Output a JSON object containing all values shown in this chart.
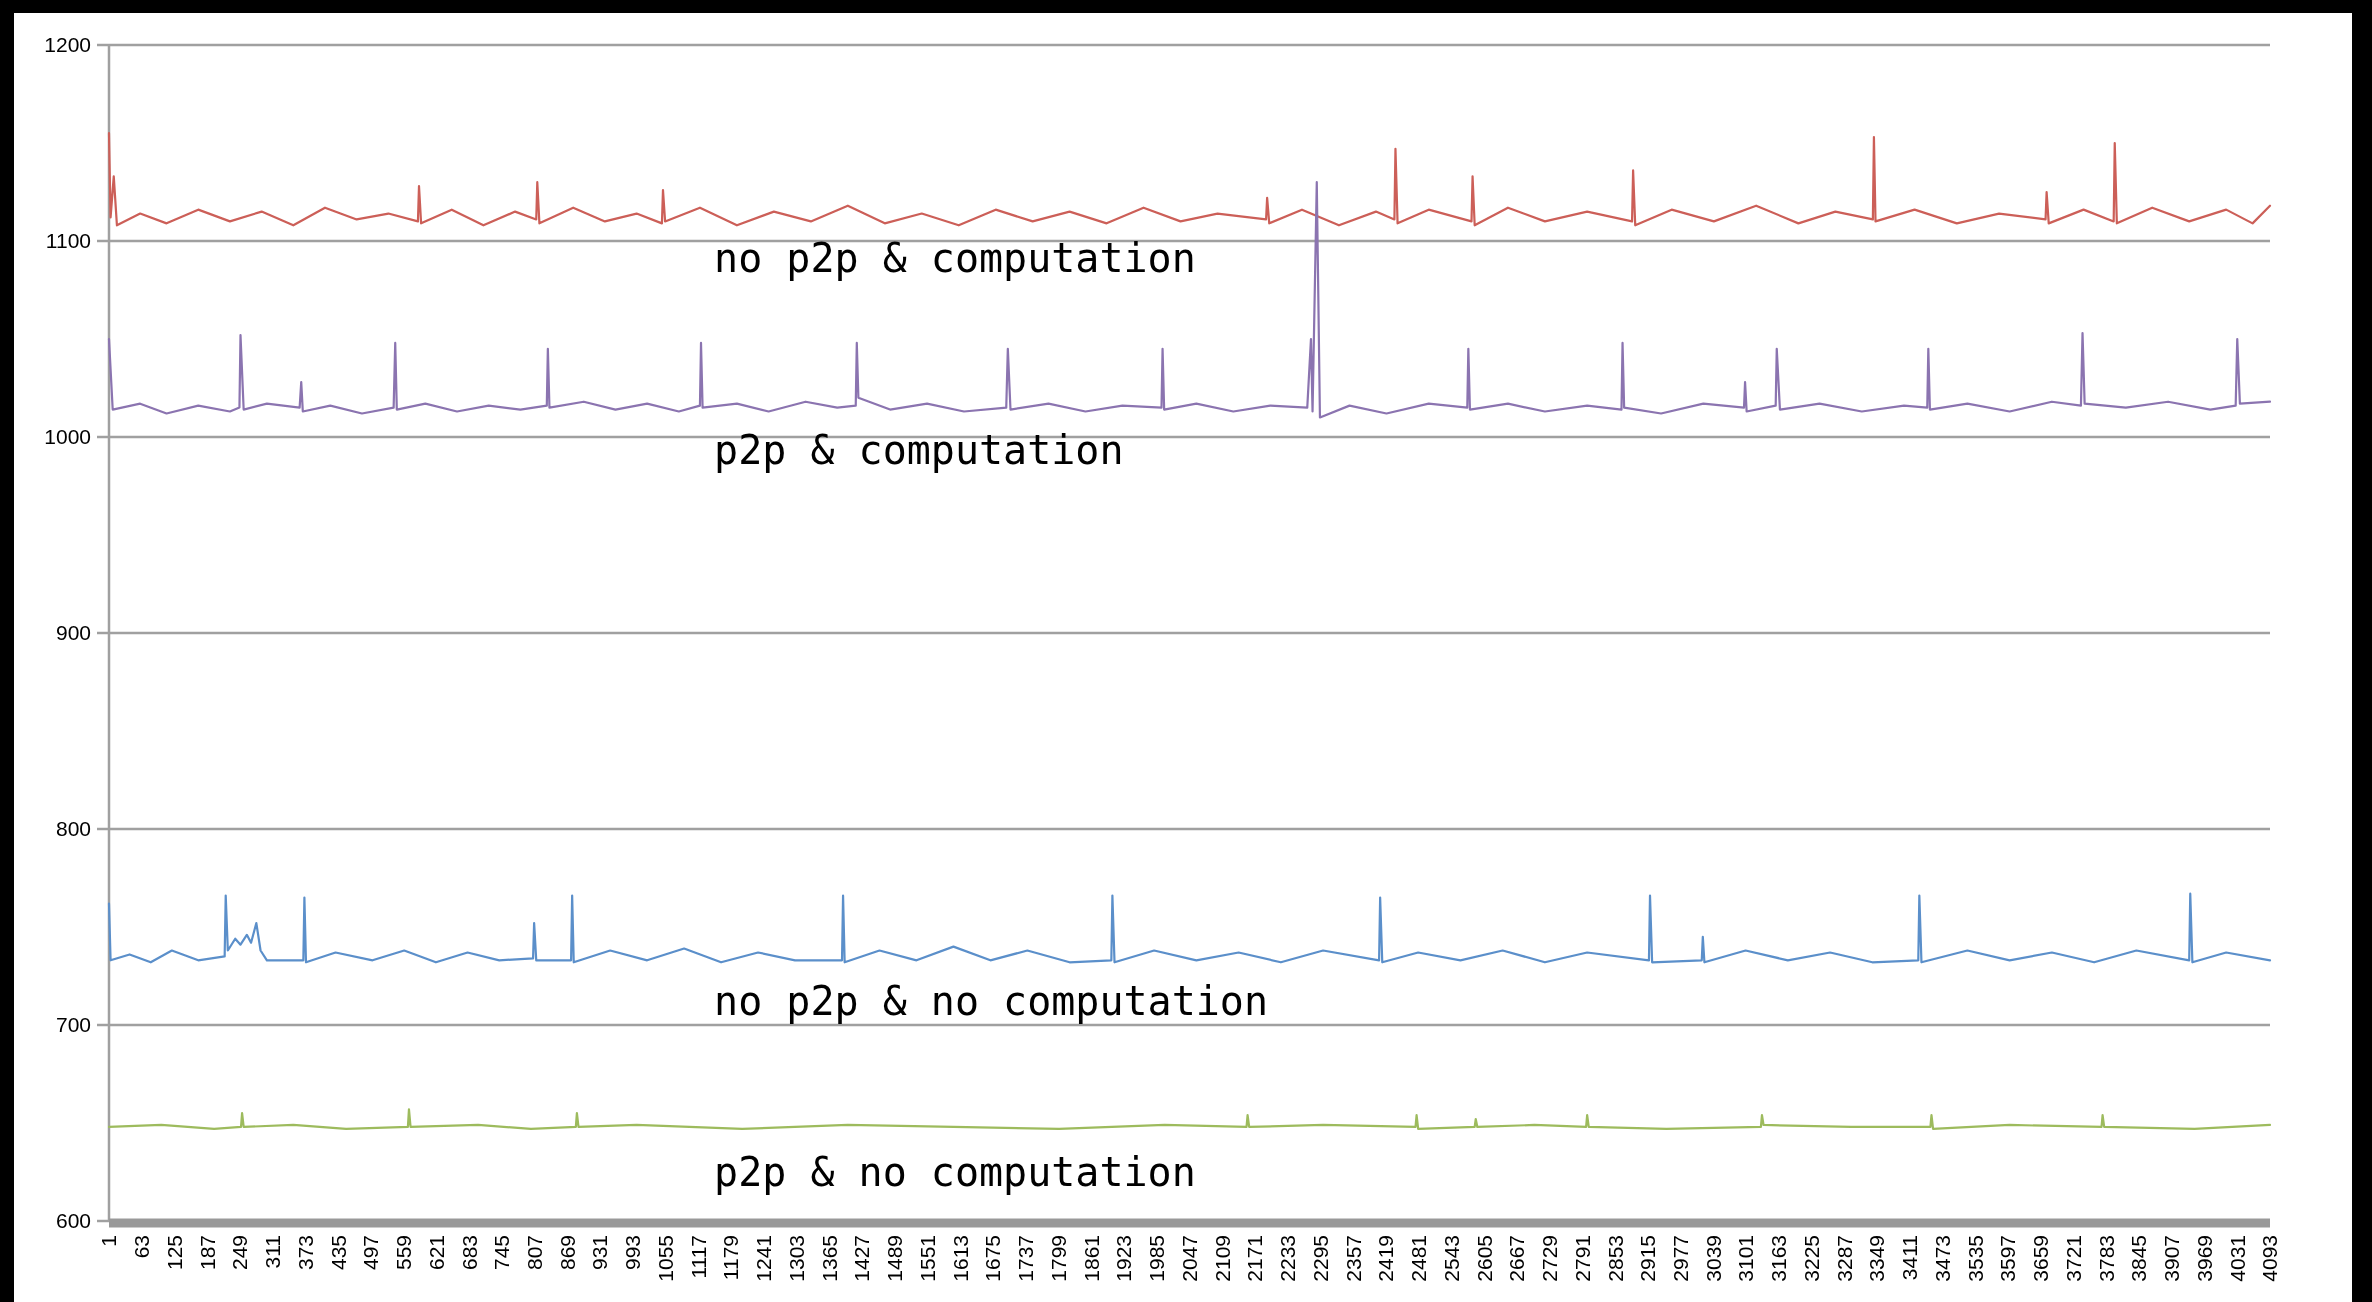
{
  "chart_data": {
    "type": "line",
    "grid": "y",
    "xlim": [
      1,
      4093
    ],
    "xticks": [
      1,
      63,
      125,
      187,
      249,
      311,
      373,
      435,
      497,
      559,
      621,
      683,
      745,
      807,
      869,
      931,
      993,
      1055,
      1117,
      1179,
      1241,
      1303,
      1365,
      1427,
      1489,
      1551,
      1613,
      1675,
      1737,
      1799,
      1861,
      1923,
      1985,
      2047,
      2109,
      2171,
      2233,
      2295,
      2357,
      2419,
      2481,
      2543,
      2605,
      2667,
      2729,
      2791,
      2853,
      2915,
      2977,
      3039,
      3101,
      3163,
      3225,
      3287,
      3349,
      3411,
      3473,
      3535,
      3597,
      3659,
      3721,
      3783,
      3845,
      3907,
      3969,
      4031,
      4093
    ],
    "ylim": [
      600,
      1200
    ],
    "yticks": [
      600,
      700,
      800,
      900,
      1000,
      1100,
      1200
    ],
    "series": [
      {
        "name": "no p2p & computation",
        "color": "#cc5f58",
        "x": [
          1,
          4,
          10,
          16,
          60,
          110,
          170,
          230,
          290,
          350,
          410,
          470,
          530,
          586,
          588,
          592,
          650,
          710,
          770,
          810,
          812,
          816,
          880,
          940,
          1000,
          1048,
          1050,
          1054,
          1120,
          1190,
          1260,
          1330,
          1400,
          1470,
          1540,
          1610,
          1680,
          1750,
          1820,
          1890,
          1960,
          2030,
          2100,
          2192,
          2194,
          2198,
          2260,
          2330,
          2400,
          2435,
          2437,
          2441,
          2500,
          2581,
          2583,
          2587,
          2650,
          2720,
          2800,
          2885,
          2887,
          2891,
          2960,
          3040,
          3120,
          3200,
          3270,
          3341,
          3343,
          3346,
          3420,
          3500,
          3580,
          3668,
          3670,
          3674,
          3740,
          3797,
          3799,
          3803,
          3870,
          3940,
          4010,
          4060,
          4093
        ],
        "values": [
          1155,
          1112,
          1133,
          1108,
          1114,
          1109,
          1116,
          1110,
          1115,
          1108,
          1117,
          1111,
          1114,
          1110,
          1128,
          1109,
          1116,
          1108,
          1115,
          1111,
          1130,
          1109,
          1117,
          1110,
          1114,
          1109,
          1126,
          1110,
          1117,
          1108,
          1115,
          1110,
          1118,
          1109,
          1114,
          1108,
          1116,
          1110,
          1115,
          1109,
          1117,
          1110,
          1114,
          1111,
          1122,
          1109,
          1116,
          1108,
          1115,
          1111,
          1147,
          1109,
          1116,
          1110,
          1133,
          1108,
          1117,
          1110,
          1115,
          1110,
          1136,
          1108,
          1116,
          1110,
          1118,
          1109,
          1115,
          1111,
          1153,
          1110,
          1116,
          1109,
          1114,
          1111,
          1125,
          1109,
          1116,
          1110,
          1150,
          1109,
          1117,
          1110,
          1116,
          1109,
          1118
        ]
      },
      {
        "name": "p2p & computation",
        "color": "#8b74b0",
        "x": [
          1,
          8,
          60,
          110,
          170,
          230,
          248,
          250,
          256,
          300,
          362,
          365,
          368,
          420,
          480,
          540,
          543,
          546,
          600,
          660,
          720,
          780,
          830,
          832,
          835,
          900,
          960,
          1020,
          1080,
          1120,
          1122,
          1125,
          1190,
          1250,
          1320,
          1380,
          1415,
          1417,
          1420,
          1480,
          1550,
          1620,
          1700,
          1703,
          1708,
          1780,
          1850,
          1920,
          1994,
          1996,
          1999,
          2060,
          2130,
          2200,
          2270,
          2277,
          2280,
          2288,
          2294,
          2350,
          2420,
          2500,
          2573,
          2575,
          2578,
          2650,
          2720,
          2800,
          2865,
          2867,
          2870,
          2940,
          3020,
          3097,
          3099,
          3102,
          3157,
          3159,
          3165,
          3240,
          3320,
          3400,
          3444,
          3446,
          3449,
          3520,
          3600,
          3680,
          3735,
          3738,
          3742,
          3820,
          3900,
          3980,
          4028,
          4031,
          4036,
          4093
        ],
        "values": [
          1050,
          1014,
          1017,
          1012,
          1016,
          1013,
          1015,
          1052,
          1014,
          1017,
          1015,
          1028,
          1013,
          1016,
          1012,
          1015,
          1048,
          1014,
          1017,
          1013,
          1016,
          1014,
          1016,
          1045,
          1015,
          1018,
          1014,
          1017,
          1013,
          1016,
          1048,
          1015,
          1017,
          1013,
          1018,
          1015,
          1016,
          1048,
          1020,
          1014,
          1017,
          1013,
          1015,
          1045,
          1014,
          1017,
          1013,
          1016,
          1015,
          1045,
          1014,
          1017,
          1013,
          1016,
          1015,
          1050,
          1013,
          1130,
          1010,
          1016,
          1012,
          1017,
          1015,
          1045,
          1014,
          1017,
          1013,
          1016,
          1014,
          1048,
          1015,
          1012,
          1017,
          1015,
          1028,
          1013,
          1016,
          1045,
          1014,
          1017,
          1013,
          1016,
          1015,
          1045,
          1014,
          1017,
          1013,
          1018,
          1016,
          1053,
          1017,
          1015,
          1018,
          1014,
          1016,
          1050,
          1017,
          1018
        ]
      },
      {
        "name": "no p2p & no computation",
        "color": "#5b8fca",
        "x": [
          1,
          4,
          40,
          80,
          120,
          170,
          220,
          222,
          226,
          240,
          250,
          262,
          270,
          280,
          288,
          300,
          369,
          371,
          374,
          430,
          500,
          560,
          620,
          680,
          740,
          804,
          806,
          810,
          876,
          878,
          881,
          950,
          1020,
          1090,
          1160,
          1230,
          1300,
          1389,
          1391,
          1394,
          1460,
          1530,
          1600,
          1670,
          1740,
          1820,
          1899,
          1901,
          1905,
          1980,
          2060,
          2140,
          2220,
          2300,
          2406,
          2408,
          2412,
          2480,
          2560,
          2640,
          2720,
          2800,
          2917,
          2919,
          2923,
          3017,
          3019,
          3022,
          3100,
          3180,
          3260,
          3340,
          3427,
          3429,
          3433,
          3520,
          3600,
          3680,
          3760,
          3840,
          3940,
          3942,
          3946,
          4010,
          4093
        ],
        "values": [
          762,
          733,
          736,
          732,
          738,
          733,
          735,
          766,
          738,
          744,
          741,
          746,
          742,
          752,
          738,
          733,
          733,
          765,
          732,
          737,
          733,
          738,
          732,
          737,
          733,
          734,
          752,
          733,
          733,
          766,
          732,
          738,
          733,
          739,
          732,
          737,
          733,
          733,
          766,
          732,
          738,
          733,
          740,
          733,
          738,
          732,
          733,
          766,
          732,
          738,
          733,
          737,
          732,
          738,
          733,
          765,
          732,
          737,
          733,
          738,
          732,
          737,
          733,
          766,
          732,
          733,
          745,
          732,
          738,
          733,
          737,
          732,
          733,
          766,
          732,
          738,
          733,
          737,
          732,
          738,
          733,
          767,
          732,
          737,
          733
        ]
      },
      {
        "name": "p2p & no computation",
        "color": "#9dbb5d",
        "x": [
          1,
          100,
          200,
          251,
          253,
          256,
          350,
          450,
          567,
          569,
          572,
          700,
          800,
          885,
          887,
          890,
          1000,
          1200,
          1400,
          1600,
          1800,
          2000,
          2155,
          2157,
          2160,
          2300,
          2475,
          2477,
          2480,
          2587,
          2589,
          2592,
          2700,
          2798,
          2800,
          2803,
          2950,
          3129,
          3131,
          3134,
          3300,
          3450,
          3452,
          3455,
          3600,
          3774,
          3776,
          3779,
          3950,
          4093
        ],
        "values": [
          648,
          649,
          647,
          648,
          655,
          648,
          649,
          647,
          648,
          657,
          648,
          649,
          647,
          648,
          655,
          648,
          649,
          647,
          649,
          648,
          647,
          649,
          648,
          654,
          648,
          649,
          648,
          654,
          647,
          648,
          652,
          648,
          649,
          648,
          654,
          648,
          647,
          648,
          654,
          649,
          648,
          648,
          654,
          647,
          649,
          648,
          654,
          648,
          647,
          649
        ]
      }
    ]
  }
}
